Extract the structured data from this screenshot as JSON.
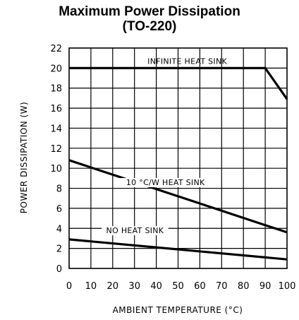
{
  "chart_data": {
    "type": "line",
    "title_lines": [
      "Maximum Power Dissipation",
      "(TO-220)"
    ],
    "xlabel": "AMBIENT TEMPERATURE (°C)",
    "ylabel": "POWER DISSIPATION (W)",
    "xlim": [
      0,
      100
    ],
    "ylim": [
      0,
      22
    ],
    "x_ticks": [
      0,
      10,
      20,
      30,
      40,
      50,
      60,
      70,
      80,
      90,
      100
    ],
    "y_ticks": [
      0,
      2,
      4,
      6,
      8,
      10,
      12,
      14,
      16,
      18,
      20,
      22
    ],
    "grid": true,
    "series": [
      {
        "name": "INFINITE HEAT SINK",
        "x": [
          0,
          90,
          100
        ],
        "y": [
          20,
          20,
          16.9
        ]
      },
      {
        "name": "10 °C/W HEAT SINK",
        "x": [
          0,
          100
        ],
        "y": [
          10.8,
          3.6
        ]
      },
      {
        "name": "NO HEAT SINK",
        "x": [
          0,
          100
        ],
        "y": [
          2.9,
          0.9
        ]
      }
    ]
  }
}
